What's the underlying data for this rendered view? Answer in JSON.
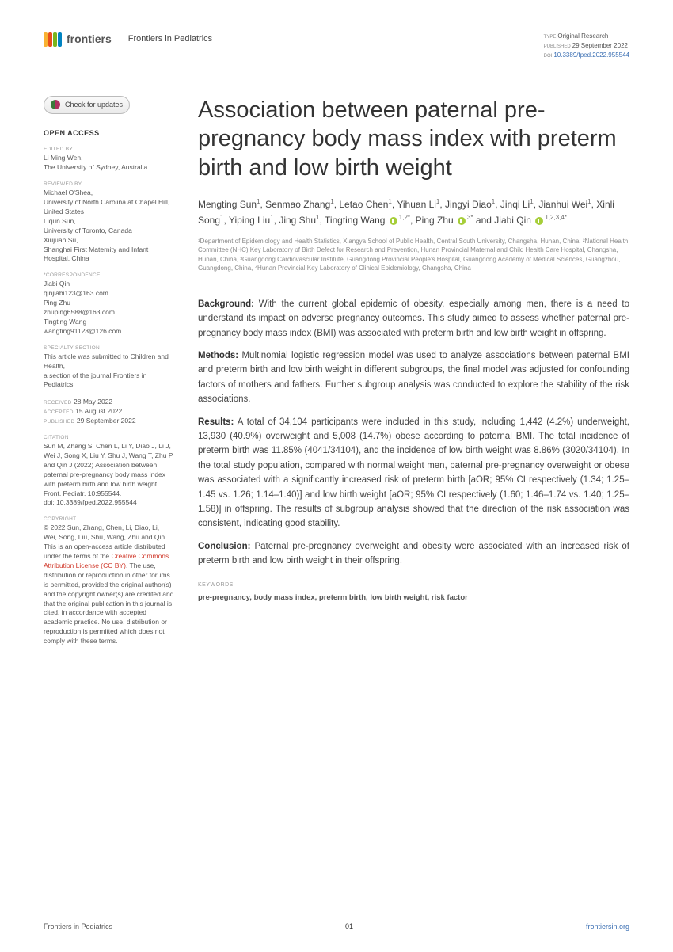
{
  "header": {
    "logo_text": "frontiers",
    "logo_colors": [
      "#f9b233",
      "#e94e1b",
      "#7ab51d",
      "#0083c1"
    ],
    "journal": "Frontiers in Pediatrics",
    "meta": {
      "type_label": "TYPE",
      "type": "Original Research",
      "published_label": "PUBLISHED",
      "published": "29 September 2022",
      "doi_label": "DOI",
      "doi": "10.3389/fped.2022.955544"
    }
  },
  "sidebar": {
    "check_updates": "Check for updates",
    "open_access": "OPEN ACCESS",
    "edited_by_label": "EDITED BY",
    "edited_by": "Li Ming Wen,\nThe University of Sydney, Australia",
    "reviewed_by_label": "REVIEWED BY",
    "reviewed_by": "Michael O'Shea,\nUniversity of North Carolina at Chapel Hill, United States\nLiqun Sun,\nUniversity of Toronto, Canada\nXiujuan Su,\nShanghai First Maternity and Infant Hospital, China",
    "correspondence_label": "*CORRESPONDENCE",
    "correspondence": "Jiabi Qin\nqinjiabi123@163.com\nPing Zhu\nzhuping6588@163.com\nTingting Wang\nwangting91123@126.com",
    "specialty_label": "SPECIALTY SECTION",
    "specialty": "This article was submitted to Children and Health,\na section of the journal Frontiers in Pediatrics",
    "received_label": "RECEIVED",
    "received": "28 May 2022",
    "accepted_label": "ACCEPTED",
    "accepted": "15 August 2022",
    "published_label": "PUBLISHED",
    "published": "29 September 2022",
    "citation_label": "CITATION",
    "citation": "Sun M, Zhang S, Chen L, Li Y, Diao J, Li J, Wei J, Song X, Liu Y, Shu J, Wang T, Zhu P and Qin J (2022) Association between paternal pre-pregnancy body mass index with preterm birth and low birth weight.\nFront. Pediatr. 10:955544.\ndoi: 10.3389/fped.2022.955544",
    "copyright_label": "COPYRIGHT",
    "copyright_pre": "© 2022 Sun, Zhang, Chen, Li, Diao, Li, Wei, Song, Liu, Shu, Wang, Zhu and Qin. This is an open-access article distributed under the terms of the ",
    "cc_link": "Creative Commons Attribution License (CC BY)",
    "copyright_post": ". The use, distribution or reproduction in other forums is permitted, provided the original author(s) and the copyright owner(s) are credited and that the original publication in this journal is cited, in accordance with accepted academic practice. No use, distribution or reproduction is permitted which does not comply with these terms."
  },
  "title": "Association between paternal pre-pregnancy body mass index with preterm birth and low birth weight",
  "authors_html": "Mengting Sun<sup>1</sup>, Senmao Zhang<sup>1</sup>, Letao Chen<sup>1</sup>, Yihuan Li<sup>1</sup>, Jingyi Diao<sup>1</sup>, Jinqi Li<sup>1</sup>, Jianhui Wei<sup>1</sup>, Xinli Song<sup>1</sup>, Yiping Liu<sup>1</sup>, Jing Shu<sup>1</sup>, Tingting Wang <span class='orcid'></span><sup>1,2*</sup>, Ping Zhu <span class='orcid'></span><sup>3*</sup> and Jiabi Qin <span class='orcid'></span><sup>1,2,3,4*</sup>",
  "affiliations": "¹Department of Epidemiology and Health Statistics, Xiangya School of Public Health, Central South University, Changsha, Hunan, China, ²National Health Committee (NHC) Key Laboratory of Birth Defect for Research and Prevention, Hunan Provincial Maternal and Child Health Care Hospital, Changsha, Hunan, China, ³Guangdong Cardiovascular Institute, Guangdong Provincial People's Hospital, Guangdong Academy of Medical Sciences, Guangzhou, Guangdong, China, ⁴Hunan Provincial Key Laboratory of Clinical Epidemiology, Changsha, China",
  "abstract": {
    "background_label": "Background:",
    "background": "With the current global epidemic of obesity, especially among men, there is a need to understand its impact on adverse pregnancy outcomes. This study aimed to assess whether paternal pre-pregnancy body mass index (BMI) was associated with preterm birth and low birth weight in offspring.",
    "methods_label": "Methods:",
    "methods": "Multinomial logistic regression model was used to analyze associations between paternal BMI and preterm birth and low birth weight in different subgroups, the final model was adjusted for confounding factors of mothers and fathers. Further subgroup analysis was conducted to explore the stability of the risk associations.",
    "results_label": "Results:",
    "results": "A total of 34,104 participants were included in this study, including 1,442 (4.2%) underweight, 13,930 (40.9%) overweight and 5,008 (14.7%) obese according to paternal BMI. The total incidence of preterm birth was 11.85% (4041/34104), and the incidence of low birth weight was 8.86% (3020/34104). In the total study population, compared with normal weight men, paternal pre-pregnancy overweight or obese was associated with a significantly increased risk of preterm birth [aOR; 95% CI respectively (1.34; 1.25–1.45 vs. 1.26; 1.14–1.40)] and low birth weight [aOR; 95% CI respectively (1.60; 1.46–1.74 vs. 1.40; 1.25–1.58)] in offspring. The results of subgroup analysis showed that the direction of the risk association was consistent, indicating good stability.",
    "conclusion_label": "Conclusion:",
    "conclusion": "Paternal pre-pregnancy overweight and obesity were associated with an increased risk of preterm birth and low birth weight in their offspring."
  },
  "keywords_label": "KEYWORDS",
  "keywords": "pre-pregnancy, body mass index, preterm birth, low birth weight, risk factor",
  "footer": {
    "left": "Frontiers in Pediatrics",
    "page": "01",
    "right": "frontiersin.org"
  }
}
